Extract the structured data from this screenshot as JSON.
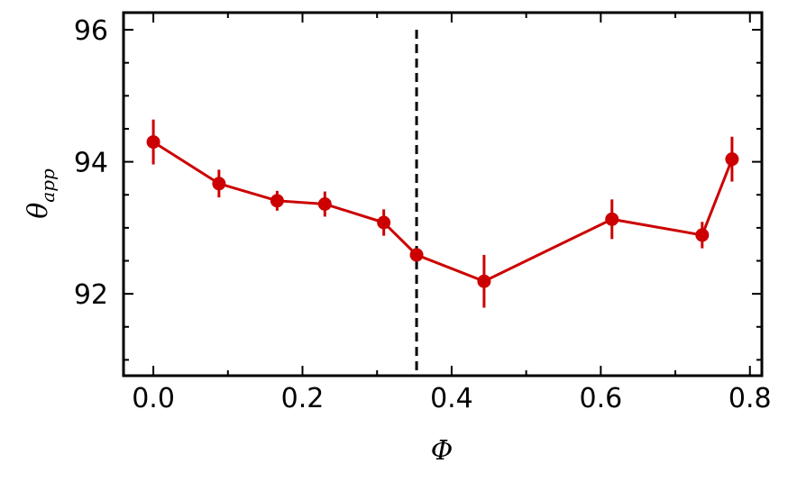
{
  "chart_data": {
    "type": "line",
    "xlabel": "Φ",
    "ylabel": "θ",
    "ylabel_subscript": "app",
    "x": [
      0.0,
      0.088,
      0.166,
      0.23,
      0.309,
      0.353,
      0.4435,
      0.615,
      0.736,
      0.776
    ],
    "series": [
      {
        "color": "#cc0000",
        "values": [
          94.3,
          93.67,
          93.41,
          93.36,
          93.08,
          92.59,
          92.19,
          93.13,
          92.89,
          94.04
        ],
        "errors": [
          0.34,
          0.21,
          0.15,
          0.19,
          0.2,
          0.08,
          0.4,
          0.3,
          0.2,
          0.34
        ]
      }
    ],
    "vline": {
      "x": 0.353,
      "color": "#000000",
      "dashed": true
    },
    "xlim": [
      -0.04,
      0.816
    ],
    "ylim": [
      90.76,
      96.26
    ],
    "xticks": [
      {
        "value": 0,
        "label": "0.0"
      },
      0.2,
      0.4,
      0.6,
      0.8
    ],
    "yticks": [
      92,
      94,
      96
    ],
    "xticks_minor": [
      0.1,
      0.3,
      0.5,
      0.7
    ],
    "yticks_minor": [
      91,
      91.5,
      92.5,
      93,
      93.5,
      94.5,
      95,
      95.5
    ],
    "grid": false
  }
}
